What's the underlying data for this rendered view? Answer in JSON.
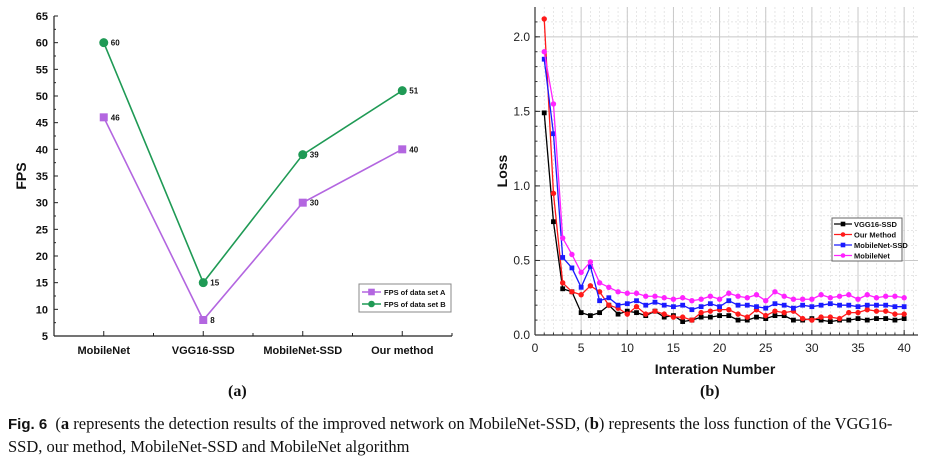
{
  "chart_data": [
    {
      "type": "line",
      "panel": "(a)",
      "title": "",
      "xlabel": "",
      "ylabel": "FPS",
      "categories": [
        "MobileNet",
        "VGG16-SSD",
        "MobileNet-SSD",
        "Our method"
      ],
      "ylim": [
        5,
        65
      ],
      "yticks": [
        5,
        10,
        15,
        20,
        25,
        30,
        35,
        40,
        45,
        50,
        55,
        60,
        65
      ],
      "grid": false,
      "legend_position": "bottom-right",
      "series": [
        {
          "name": "FPS of data set A",
          "color": "#b366e0",
          "marker": "square",
          "values": [
            46,
            8,
            30,
            40
          ]
        },
        {
          "name": "FPS of data set B",
          "color": "#1f9a55",
          "marker": "circle",
          "values": [
            60,
            15,
            39,
            51
          ]
        }
      ]
    },
    {
      "type": "line",
      "panel": "(b)",
      "title": "",
      "xlabel": "Interation Number",
      "ylabel": "Loss",
      "xlim": [
        0,
        41.5
      ],
      "ylim": [
        0.0,
        2.2
      ],
      "xticks": [
        0,
        5,
        10,
        15,
        20,
        25,
        30,
        35,
        40
      ],
      "yticks": [
        "0.0",
        "0.5",
        "1.0",
        "1.5",
        "2.0"
      ],
      "grid": true,
      "legend_position": "center-right",
      "x": [
        1,
        2,
        3,
        4,
        5,
        6,
        7,
        8,
        9,
        10,
        11,
        12,
        13,
        14,
        15,
        16,
        17,
        18,
        19,
        20,
        21,
        22,
        23,
        24,
        25,
        26,
        27,
        28,
        29,
        30,
        31,
        32,
        33,
        34,
        35,
        36,
        37,
        38,
        39,
        40
      ],
      "series": [
        {
          "name": "VGG16-SSD",
          "color": "#000000",
          "marker": "square",
          "values": [
            1.49,
            0.76,
            0.31,
            0.29,
            0.15,
            0.13,
            0.15,
            0.2,
            0.14,
            0.16,
            0.15,
            0.13,
            0.16,
            0.12,
            0.13,
            0.09,
            0.1,
            0.12,
            0.12,
            0.13,
            0.13,
            0.1,
            0.1,
            0.12,
            0.11,
            0.13,
            0.13,
            0.1,
            0.1,
            0.11,
            0.1,
            0.09,
            0.1,
            0.1,
            0.11,
            0.1,
            0.11,
            0.11,
            0.1,
            0.11
          ]
        },
        {
          "name": "Our Method",
          "color": "#ff1a1a",
          "marker": "circle",
          "values": [
            2.12,
            0.95,
            0.35,
            0.29,
            0.27,
            0.33,
            0.29,
            0.2,
            0.18,
            0.14,
            0.19,
            0.14,
            0.16,
            0.14,
            0.12,
            0.12,
            0.1,
            0.15,
            0.16,
            0.17,
            0.17,
            0.14,
            0.12,
            0.17,
            0.13,
            0.16,
            0.15,
            0.16,
            0.11,
            0.1,
            0.12,
            0.12,
            0.11,
            0.15,
            0.15,
            0.17,
            0.16,
            0.16,
            0.14,
            0.14
          ]
        },
        {
          "name": "MobileNet-SSD",
          "color": "#1a1aff",
          "marker": "square",
          "values": [
            1.85,
            1.35,
            0.52,
            0.45,
            0.32,
            0.46,
            0.23,
            0.25,
            0.2,
            0.21,
            0.23,
            0.2,
            0.22,
            0.2,
            0.19,
            0.2,
            0.17,
            0.19,
            0.21,
            0.19,
            0.23,
            0.2,
            0.2,
            0.19,
            0.18,
            0.21,
            0.2,
            0.18,
            0.2,
            0.19,
            0.2,
            0.21,
            0.2,
            0.2,
            0.19,
            0.2,
            0.2,
            0.2,
            0.19,
            0.19
          ]
        },
        {
          "name": "MobileNet",
          "color": "#ff22ff",
          "marker": "circle",
          "values": [
            1.9,
            1.55,
            0.65,
            0.54,
            0.42,
            0.49,
            0.35,
            0.32,
            0.29,
            0.28,
            0.28,
            0.26,
            0.26,
            0.25,
            0.24,
            0.25,
            0.23,
            0.24,
            0.26,
            0.24,
            0.28,
            0.26,
            0.25,
            0.27,
            0.23,
            0.29,
            0.26,
            0.24,
            0.24,
            0.24,
            0.27,
            0.25,
            0.26,
            0.27,
            0.24,
            0.27,
            0.25,
            0.26,
            0.26,
            0.25
          ]
        }
      ]
    }
  ],
  "labels": {
    "panel_a": "(a)",
    "panel_b": "(b)",
    "caption_fig": "Fig. 6",
    "caption_a_marker": "a",
    "caption_b_marker": "b",
    "caption_part1": " represents the detection results of the improved network on MobileNet-SSD, (",
    "caption_part2": ") represents the loss function of the VGG16-SSD, our method, MobileNet-SSD and MobileNet algorithm"
  }
}
